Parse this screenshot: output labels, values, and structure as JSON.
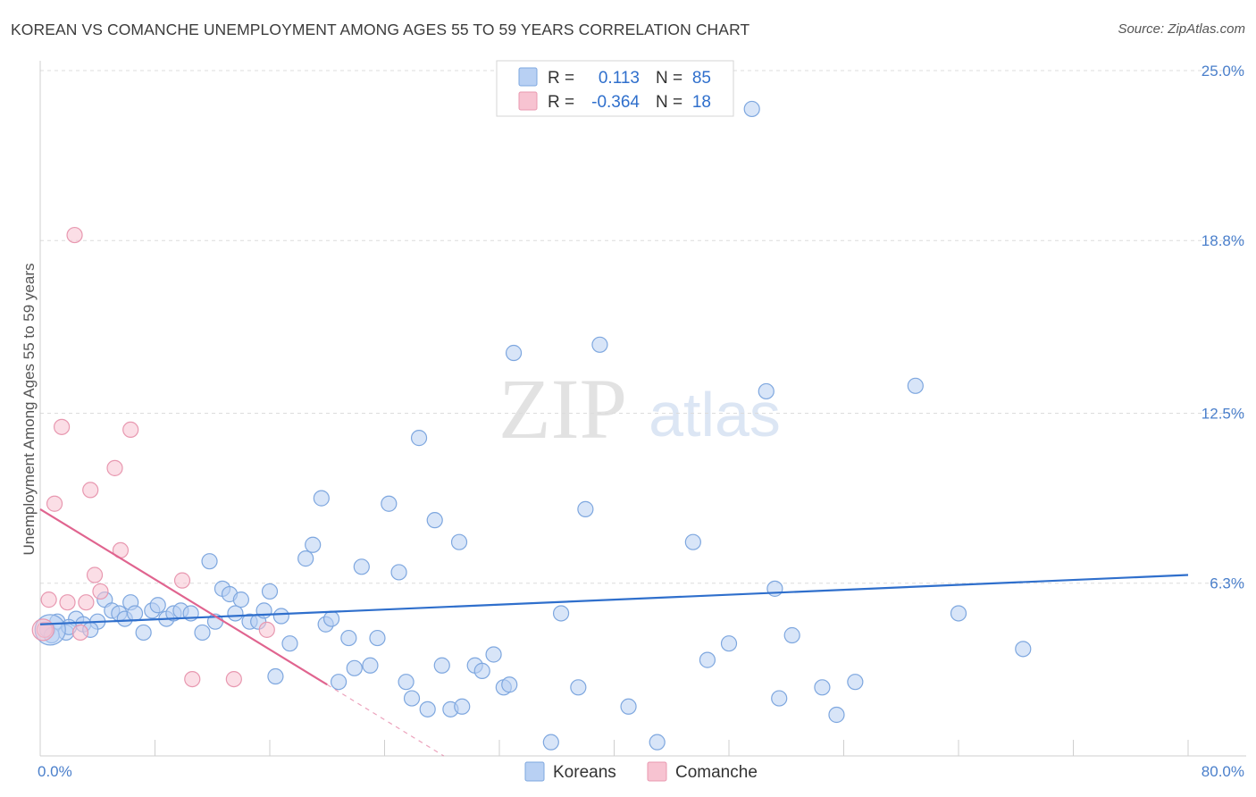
{
  "header": {
    "title": "KOREAN VS COMANCHE UNEMPLOYMENT AMONG AGES 55 TO 59 YEARS CORRELATION CHART",
    "source": "Source: ZipAtlas.com"
  },
  "watermark": {
    "zip": "ZIP",
    "atlas": "atlas"
  },
  "legend": {
    "rows": [
      {
        "r_label": "R =",
        "r_value": "0.113",
        "n_label": "N =",
        "n_value": "85"
      },
      {
        "r_label": "R =",
        "r_value": "-0.364",
        "n_label": "N =",
        "n_value": "18"
      }
    ]
  },
  "bottom_legend": {
    "koreans": "Koreans",
    "comanche": "Comanche"
  },
  "colors": {
    "korean_fill": "#b8d0f3",
    "korean_stroke": "#7ea7df",
    "korean_line": "#2f6fcc",
    "comanche_fill": "#f7c3d1",
    "comanche_stroke": "#e898b0",
    "comanche_line": "#e0648f",
    "grid": "#dcdcdc",
    "tick_label": "#4a7fcb"
  },
  "chart_data": {
    "type": "scatter",
    "title": "KOREAN VS COMANCHE UNEMPLOYMENT AMONG AGES 55 TO 59 YEARS CORRELATION CHART",
    "ylabel": "Unemployment Among Ages 55 to 59 years",
    "xlabel": "",
    "xlim": [
      0,
      80
    ],
    "ylim": [
      0,
      25
    ],
    "x_tick_labels": [
      "0.0%",
      "80.0%"
    ],
    "y_ticks": [
      6.3,
      12.5,
      18.8,
      25.0
    ],
    "y_tick_labels": [
      "6.3%",
      "12.5%",
      "18.8%",
      "25.0%"
    ],
    "grid": "horizontal dashed",
    "legend_position": "top-center",
    "series": [
      {
        "name": "Koreans",
        "r": 0.113,
        "n": 85,
        "trend": {
          "x": [
            0,
            80
          ],
          "y": [
            4.8,
            6.6
          ]
        },
        "points": [
          [
            0.5,
            4.6
          ],
          [
            1.2,
            4.9
          ],
          [
            1.8,
            4.5
          ],
          [
            2.5,
            5.0
          ],
          [
            3.0,
            4.8
          ],
          [
            4.0,
            4.9
          ],
          [
            4.5,
            5.7
          ],
          [
            5.0,
            5.3
          ],
          [
            5.5,
            5.2
          ],
          [
            5.9,
            5.0
          ],
          [
            6.3,
            5.6
          ],
          [
            6.6,
            5.2
          ],
          [
            7.2,
            4.5
          ],
          [
            7.8,
            5.3
          ],
          [
            8.2,
            5.5
          ],
          [
            8.8,
            5.0
          ],
          [
            9.3,
            5.2
          ],
          [
            9.8,
            5.3
          ],
          [
            10.5,
            5.2
          ],
          [
            11.3,
            4.5
          ],
          [
            11.8,
            7.1
          ],
          [
            12.2,
            4.9
          ],
          [
            12.7,
            6.1
          ],
          [
            13.2,
            5.9
          ],
          [
            13.6,
            5.2
          ],
          [
            14.0,
            5.7
          ],
          [
            14.6,
            4.9
          ],
          [
            15.2,
            4.9
          ],
          [
            15.6,
            5.3
          ],
          [
            16.0,
            6.0
          ],
          [
            16.4,
            2.9
          ],
          [
            16.8,
            5.1
          ],
          [
            17.4,
            4.1
          ],
          [
            18.5,
            7.2
          ],
          [
            19.0,
            7.7
          ],
          [
            19.6,
            9.4
          ],
          [
            19.9,
            4.8
          ],
          [
            20.3,
            5.0
          ],
          [
            20.8,
            2.7
          ],
          [
            21.5,
            4.3
          ],
          [
            21.9,
            3.2
          ],
          [
            22.4,
            6.9
          ],
          [
            23.0,
            3.3
          ],
          [
            23.5,
            4.3
          ],
          [
            24.3,
            9.2
          ],
          [
            25.0,
            6.7
          ],
          [
            25.5,
            2.7
          ],
          [
            25.9,
            2.1
          ],
          [
            26.4,
            11.6
          ],
          [
            27.0,
            1.7
          ],
          [
            27.5,
            8.6
          ],
          [
            28.0,
            3.3
          ],
          [
            28.6,
            1.7
          ],
          [
            29.2,
            7.8
          ],
          [
            29.4,
            1.8
          ],
          [
            30.3,
            3.3
          ],
          [
            30.8,
            3.1
          ],
          [
            31.6,
            3.7
          ],
          [
            32.3,
            2.5
          ],
          [
            32.7,
            2.6
          ],
          [
            33.0,
            14.7
          ],
          [
            35.6,
            0.5
          ],
          [
            36.3,
            5.2
          ],
          [
            37.5,
            2.5
          ],
          [
            38.0,
            9.0
          ],
          [
            39.0,
            15.0
          ],
          [
            41.0,
            1.8
          ],
          [
            43.0,
            0.5
          ],
          [
            45.5,
            7.8
          ],
          [
            46.5,
            3.5
          ],
          [
            48.0,
            4.1
          ],
          [
            49.6,
            23.6
          ],
          [
            50.6,
            13.3
          ],
          [
            51.2,
            6.1
          ],
          [
            51.5,
            2.1
          ],
          [
            52.4,
            4.4
          ],
          [
            54.5,
            2.5
          ],
          [
            55.5,
            1.5
          ],
          [
            56.8,
            2.7
          ],
          [
            61.0,
            13.5
          ],
          [
            64.0,
            5.2
          ],
          [
            68.5,
            3.9
          ],
          [
            0.8,
            4.4
          ],
          [
            2.0,
            4.7
          ],
          [
            3.5,
            4.6
          ]
        ]
      },
      {
        "name": "Comanche",
        "r": -0.364,
        "n": 18,
        "trend": {
          "x": [
            0,
            20.0
          ],
          "y": [
            9.0,
            2.6
          ]
        },
        "points": [
          [
            0.3,
            4.6
          ],
          [
            0.6,
            5.7
          ],
          [
            1.0,
            9.2
          ],
          [
            1.5,
            12.0
          ],
          [
            1.9,
            5.6
          ],
          [
            2.4,
            19.0
          ],
          [
            2.8,
            4.5
          ],
          [
            3.2,
            5.6
          ],
          [
            3.5,
            9.7
          ],
          [
            3.8,
            6.6
          ],
          [
            4.2,
            6.0
          ],
          [
            5.2,
            10.5
          ],
          [
            5.6,
            7.5
          ],
          [
            6.3,
            11.9
          ],
          [
            9.9,
            6.4
          ],
          [
            10.6,
            2.8
          ],
          [
            13.5,
            2.8
          ],
          [
            15.8,
            4.6
          ]
        ]
      }
    ]
  }
}
